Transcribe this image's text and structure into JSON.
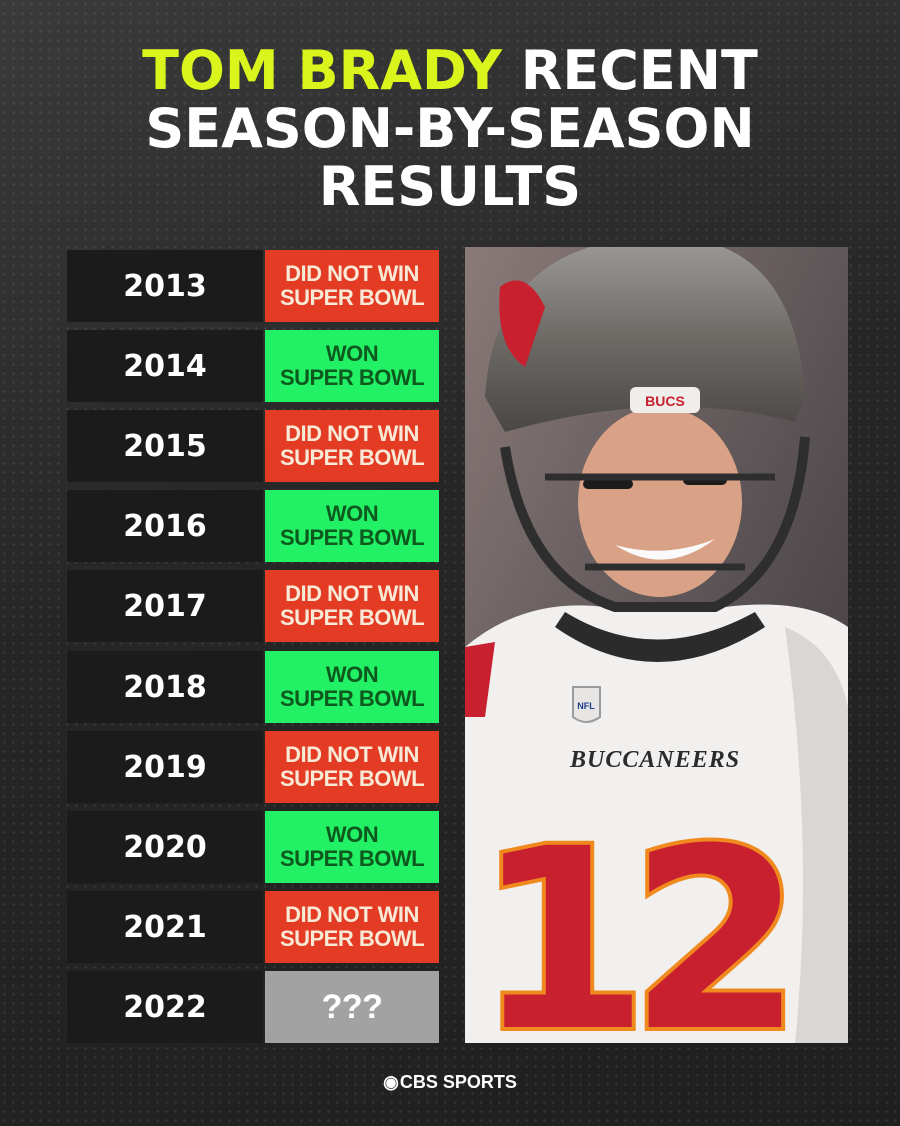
{
  "title": {
    "highlight": "TOM BRADY",
    "line1_rest": " RECENT",
    "line2": "SEASON-BY-SEASON",
    "line3": "RESULTS"
  },
  "colors": {
    "title_highlight": "#d9f51c",
    "lost": "#e33b24",
    "won": "#22f065",
    "unknown": "#a2a2a2",
    "year_bg": "#1b1b1b"
  },
  "rows": [
    {
      "year": "2013",
      "result": "DID NOT WIN\nSUPER BOWL",
      "status": "lost"
    },
    {
      "year": "2014",
      "result": "WON\nSUPER BOWL",
      "status": "won"
    },
    {
      "year": "2015",
      "result": "DID NOT WIN\nSUPER BOWL",
      "status": "lost"
    },
    {
      "year": "2016",
      "result": "WON\nSUPER BOWL",
      "status": "won"
    },
    {
      "year": "2017",
      "result": "DID NOT WIN\nSUPER BOWL",
      "status": "lost"
    },
    {
      "year": "2018",
      "result": "WON\nSUPER BOWL",
      "status": "won"
    },
    {
      "year": "2019",
      "result": "DID NOT WIN\nSUPER BOWL",
      "status": "lost"
    },
    {
      "year": "2020",
      "result": "WON\nSUPER BOWL",
      "status": "won"
    },
    {
      "year": "2021",
      "result": "DID NOT WIN\nSUPER BOWL",
      "status": "lost"
    },
    {
      "year": "2022",
      "result": "???",
      "status": "unknown"
    }
  ],
  "photo": {
    "helmet_text": "BUCS",
    "jersey_text": "BUCCANEERS",
    "jersey_number": "12",
    "badge_text": "NFL"
  },
  "footer": {
    "logo_icon": "cbs-eye-icon",
    "brand": "CBS SPORTS"
  }
}
